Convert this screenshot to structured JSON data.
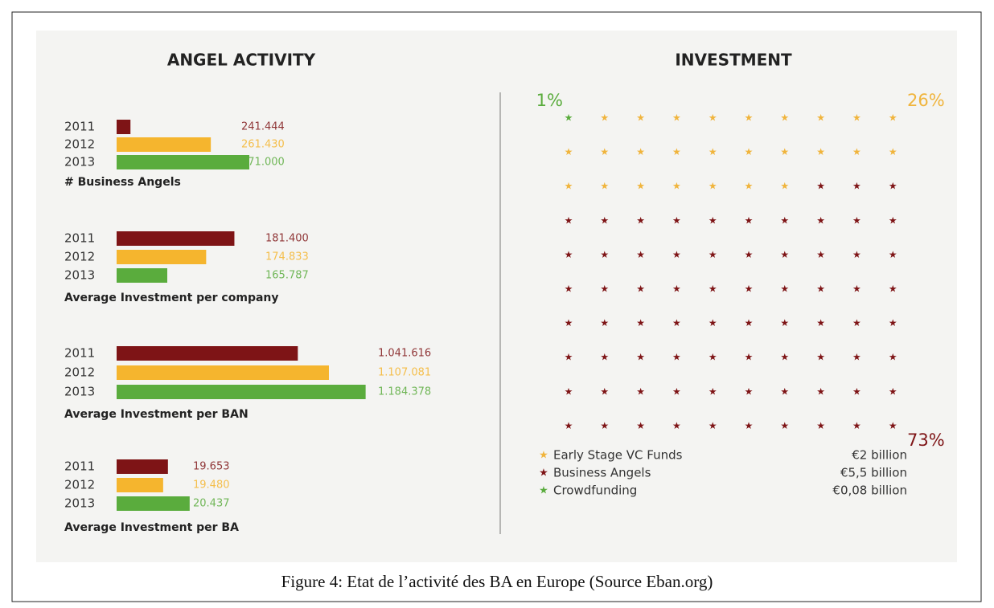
{
  "heading_left": "ANGEL ACTIVITY",
  "heading_right": "INVESTMENT",
  "caption": "Figure 4: Etat de l’activité des BA en Europe (Source Eban.org)",
  "chart_data": [
    {
      "type": "bar",
      "orientation": "horizontal",
      "title": "# Business Angels",
      "categories": [
        "2011",
        "2012",
        "2013"
      ],
      "values": [
        241444,
        261430,
        271000
      ],
      "value_labels": [
        "241.444",
        "261.430",
        "271.000"
      ],
      "colors": [
        "#7e1416",
        "#f5b52e",
        "#5aac3d"
      ],
      "xlim": [
        238000,
        300000
      ]
    },
    {
      "type": "bar",
      "orientation": "horizontal",
      "title": "Average Investment per company",
      "categories": [
        "2011",
        "2012",
        "2013"
      ],
      "values": [
        181400,
        174833,
        165787
      ],
      "value_labels": [
        "181.400",
        "174.833",
        "165.787"
      ],
      "colors": [
        "#7e1416",
        "#f5b52e",
        "#5aac3d"
      ],
      "xlim": [
        154000,
        212000
      ]
    },
    {
      "type": "bar",
      "orientation": "horizontal",
      "title": "Average Investment per BAN",
      "categories": [
        "2011",
        "2012",
        "2013"
      ],
      "values": [
        1041616,
        1107081,
        1184378
      ],
      "value_labels": [
        "1.041.616",
        "1.107.081",
        "1.184.378"
      ],
      "colors": [
        "#7e1416",
        "#f5b52e",
        "#5aac3d"
      ],
      "xlim": [
        660000,
        1185000
      ]
    },
    {
      "type": "bar",
      "orientation": "horizontal",
      "title": "Average Investment per BA",
      "categories": [
        "2011",
        "2012",
        "2013"
      ],
      "values": [
        19653,
        19480,
        20437
      ],
      "value_labels": [
        "19.653",
        "19.480",
        "20.437"
      ],
      "colors": [
        "#7e1416",
        "#f5b52e",
        "#5aac3d"
      ],
      "xlim": [
        17800,
        26800
      ]
    },
    {
      "type": "waffle",
      "series": [
        {
          "name": "Early Stage VC Funds",
          "color": "#f0b43c",
          "value": 26,
          "value_label": "26%",
          "amount": 2,
          "amount_label": "€2 billion"
        },
        {
          "name": "Business Angels",
          "color": "#7e1416",
          "value": 73,
          "value_label": "73%",
          "amount": 5.5,
          "amount_label": "€5,5 billion"
        },
        {
          "name": "Crowdfunding",
          "color": "#5aac3d",
          "value": 1,
          "value_label": "1%",
          "amount": 0.08,
          "amount_label": "€0,08 billion"
        }
      ]
    }
  ]
}
